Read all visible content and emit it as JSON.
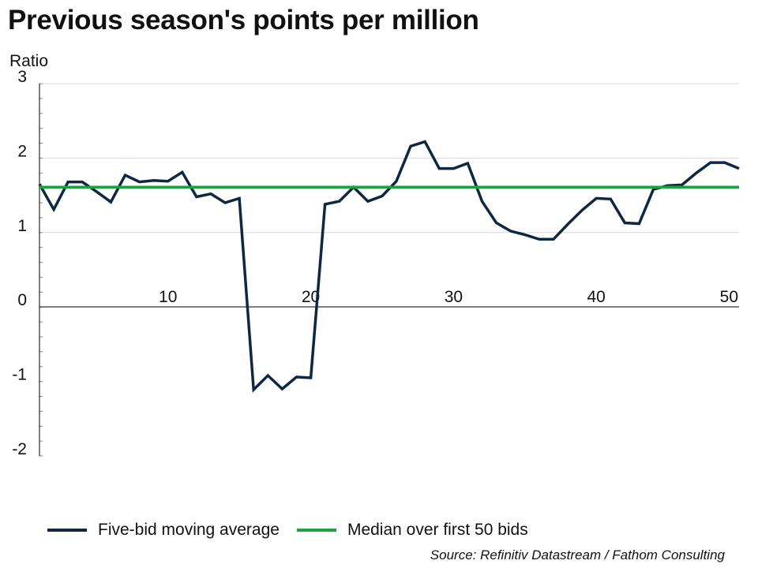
{
  "title": "Previous season's points per million",
  "source": "Source: Refinitiv Datastream / Fathom Consulting",
  "chart_data": {
    "type": "line",
    "title": "Previous season's points per million",
    "ylabel": "Ratio",
    "xlabel": "",
    "xlim": [
      1,
      50
    ],
    "ylim": [
      -2,
      3
    ],
    "yticks": [
      3,
      2,
      1,
      0,
      -1,
      -2
    ],
    "xticks": [
      10,
      20,
      30,
      40,
      50
    ],
    "grid": "horizontal",
    "legend_position": "bottom",
    "colors": {
      "moving_average": "#0e2841",
      "median": "#1aa33b",
      "grid": "#d9d9d9"
    },
    "series": [
      {
        "name": "Five-bid moving average",
        "x": [
          1,
          2,
          3,
          4,
          5,
          6,
          7,
          8,
          9,
          10,
          11,
          12,
          13,
          14,
          15,
          16,
          17,
          18,
          19,
          20,
          21,
          22,
          23,
          24,
          25,
          26,
          27,
          28,
          29,
          30,
          31,
          32,
          33,
          34,
          35,
          36,
          37,
          38,
          39,
          40,
          41,
          42,
          43,
          44,
          45,
          46,
          47,
          48,
          49,
          50
        ],
        "values": [
          1.65,
          1.31,
          1.68,
          1.68,
          1.55,
          1.41,
          1.77,
          1.68,
          1.7,
          1.69,
          1.81,
          1.48,
          1.52,
          1.4,
          1.46,
          -1.11,
          -0.92,
          -1.1,
          -0.94,
          -0.95,
          1.38,
          1.42,
          1.61,
          1.42,
          1.49,
          1.69,
          2.16,
          2.22,
          1.86,
          1.86,
          1.93,
          1.42,
          1.13,
          1.02,
          0.97,
          0.91,
          0.91,
          1.11,
          1.3,
          1.46,
          1.45,
          1.13,
          1.12,
          1.58,
          1.63,
          1.64,
          1.8,
          1.94,
          1.94,
          1.86
        ]
      },
      {
        "name": "Median over first 50 bids",
        "x": [
          1,
          50
        ],
        "values": [
          1.61,
          1.61
        ]
      }
    ]
  }
}
